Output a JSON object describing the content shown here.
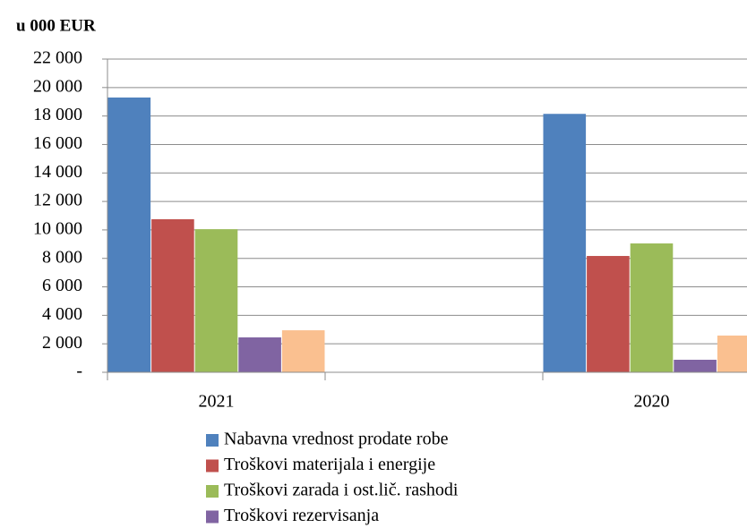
{
  "chart_data": {
    "type": "bar",
    "title": "u 000 EUR",
    "categories": [
      "2021",
      null,
      "2020"
    ],
    "series": [
      {
        "name": "Nabavna vrednost prodate robe",
        "color": "#4f81bd",
        "values": [
          19300,
          null,
          18150
        ]
      },
      {
        "name": "Troškovi materijala i energije",
        "color": "#c0504d",
        "values": [
          10750,
          null,
          8170
        ]
      },
      {
        "name": "Troškovi zarada i ost.lič. rashodi",
        "color": "#9bbb59",
        "values": [
          10050,
          null,
          9050
        ]
      },
      {
        "name": "Troškovi rezervisanja",
        "color": "#8064a2",
        "values": [
          2450,
          null,
          880
        ]
      },
      {
        "name": null,
        "color": "#fac090",
        "values": [
          2950,
          null,
          2580
        ]
      }
    ],
    "ylim": [
      0,
      22000
    ],
    "yticks": [
      {
        "value": 0,
        "label": "-"
      },
      {
        "value": 2000,
        "label": "2 000"
      },
      {
        "value": 4000,
        "label": "4 000"
      },
      {
        "value": 6000,
        "label": "6 000"
      },
      {
        "value": 8000,
        "label": "8 000"
      },
      {
        "value": 10000,
        "label": "10 000"
      },
      {
        "value": 12000,
        "label": "12 000"
      },
      {
        "value": 14000,
        "label": "14 000"
      },
      {
        "value": 16000,
        "label": "16 000"
      },
      {
        "value": 18000,
        "label": "18 000"
      },
      {
        "value": 20000,
        "label": "20 000"
      },
      {
        "value": 22000,
        "label": "22 000"
      }
    ],
    "grid": true
  }
}
